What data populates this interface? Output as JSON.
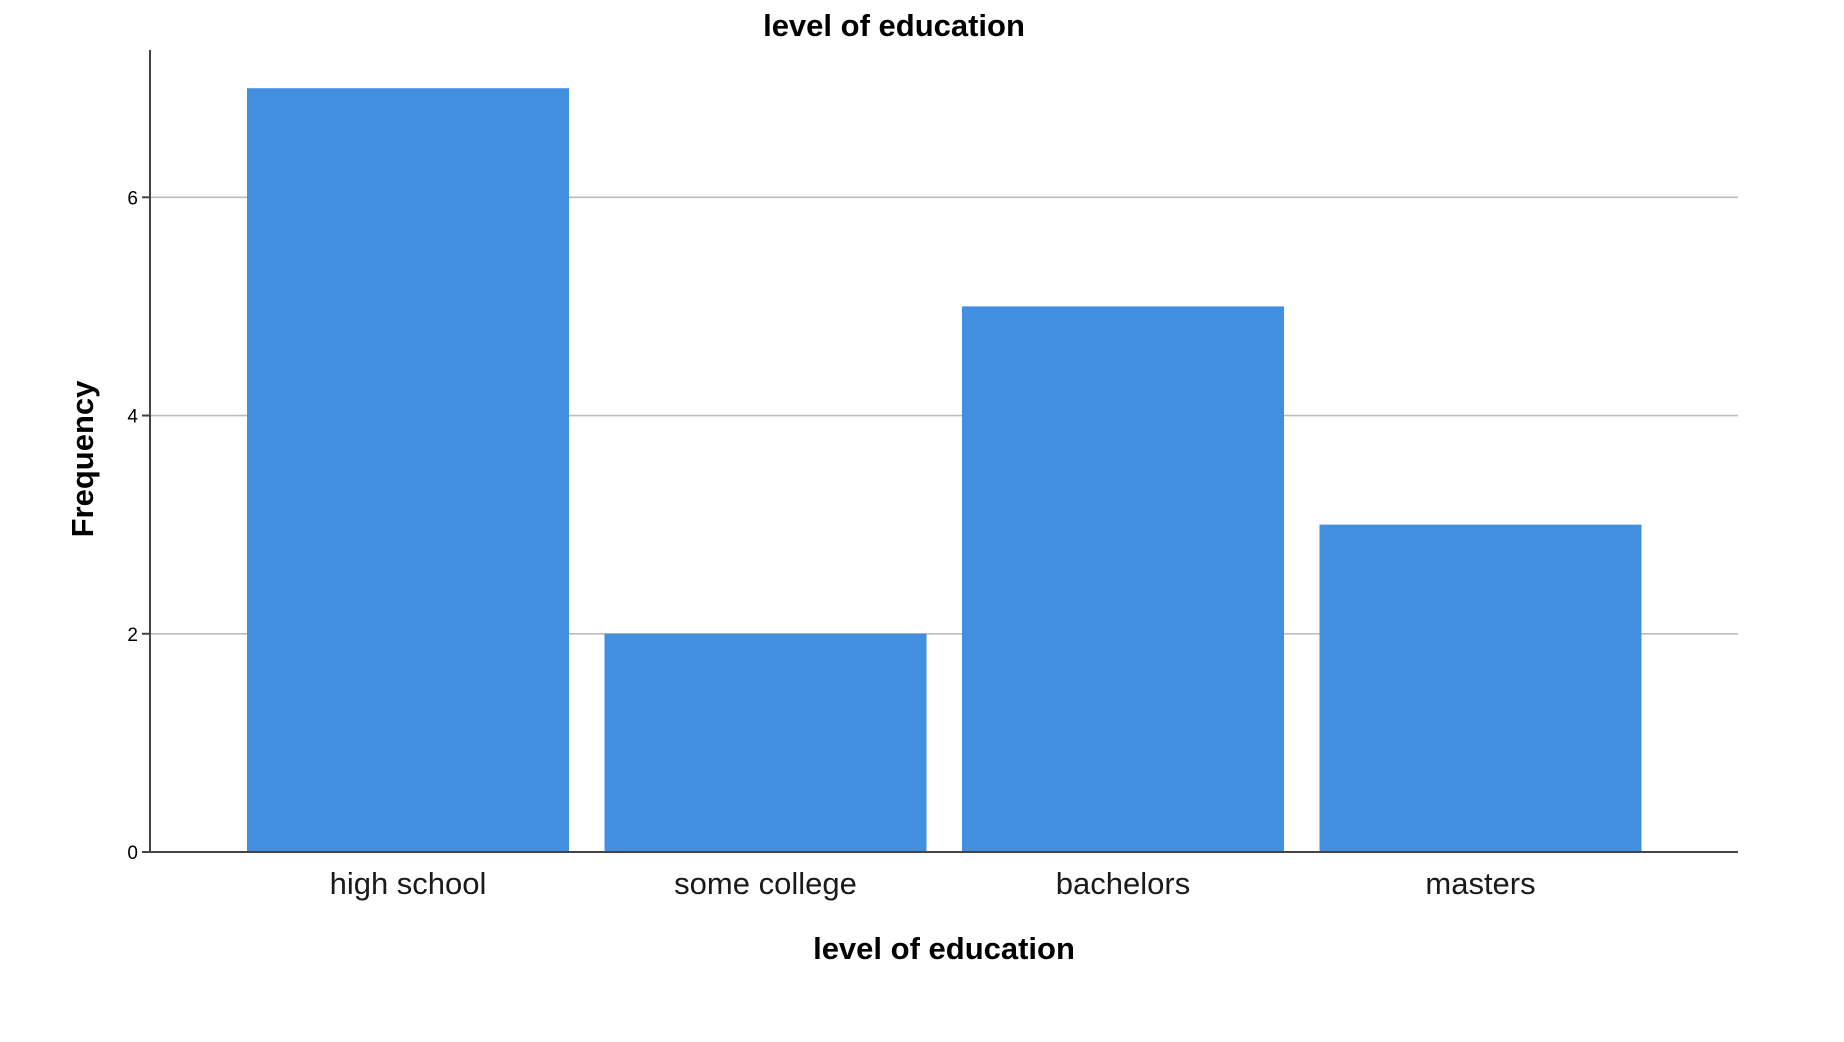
{
  "chart_data": {
    "type": "bar",
    "title": "level of education",
    "xlabel": "level of education",
    "ylabel": "Frequency",
    "categories": [
      "high school",
      "some college",
      "bachelors",
      "masters"
    ],
    "values": [
      7,
      2,
      5,
      3
    ],
    "ylim": [
      0,
      7.35
    ],
    "yticks": [
      0,
      2,
      4,
      6
    ],
    "grid": true,
    "legend": "none",
    "bar_color": "#428fe0",
    "grid_color": "#bdbdbd",
    "axis_color": "#444444"
  }
}
